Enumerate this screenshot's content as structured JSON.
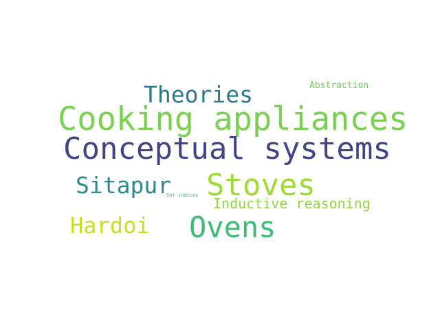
{
  "words": {
    "cooking_appliances": {
      "text": "Cooking appliances",
      "color": "#7ad151"
    },
    "conceptual_systems": {
      "text": "Conceptual systems",
      "color": "#414487"
    },
    "stoves": {
      "text": "Stoves",
      "color": "#a0da39"
    },
    "ovens": {
      "text": "Ovens",
      "color": "#3dbc74"
    },
    "theories": {
      "text": "Theories",
      "color": "#2a788e"
    },
    "sitapur": {
      "text": "Sitapur",
      "color": "#2c8c8c"
    },
    "hardoi": {
      "text": "Hardoi",
      "color": "#c8e020"
    },
    "inductive_reasoning": {
      "text": "Inductive reasoning",
      "color": "#8fd744"
    },
    "abstraction": {
      "text": "Abstraction",
      "color": "#6ece58"
    },
    "set_indices": {
      "text": "Set indices",
      "color": "#3aa28a"
    }
  }
}
